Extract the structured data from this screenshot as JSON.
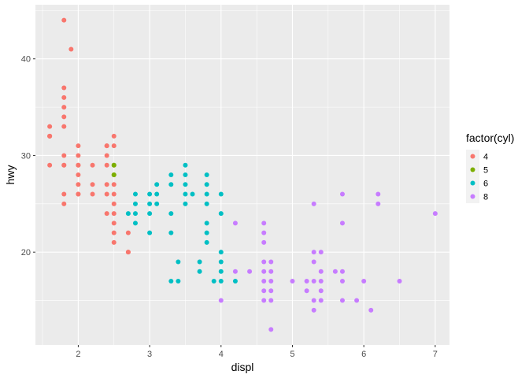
{
  "chart_data": {
    "type": "scatter",
    "title": "",
    "xlabel": "displ",
    "ylabel": "hwy",
    "xlim": [
      1.4,
      7.2
    ],
    "ylim": [
      10.4,
      45.6
    ],
    "x_ticks": [
      2,
      3,
      4,
      5,
      6,
      7
    ],
    "y_ticks": [
      20,
      30,
      40
    ],
    "grid": true,
    "legend": {
      "title": "factor(cyl)",
      "placement": "right",
      "entries": [
        {
          "label": "4",
          "color": "#F8766D"
        },
        {
          "label": "5",
          "color": "#7CAE00"
        },
        {
          "label": "6",
          "color": "#00BFC4"
        },
        {
          "label": "8",
          "color": "#C77CFF"
        }
      ]
    },
    "series": [
      {
        "name": "4",
        "color": "#F8766D",
        "points": [
          [
            1.6,
            33
          ],
          [
            1.6,
            32
          ],
          [
            1.6,
            32
          ],
          [
            1.6,
            29
          ],
          [
            1.6,
            32
          ],
          [
            1.8,
            44
          ],
          [
            1.9,
            41
          ],
          [
            1.8,
            37
          ],
          [
            1.8,
            36
          ],
          [
            1.8,
            35
          ],
          [
            1.8,
            34
          ],
          [
            1.8,
            33
          ],
          [
            1.8,
            30
          ],
          [
            1.8,
            29
          ],
          [
            1.8,
            29
          ],
          [
            1.8,
            26
          ],
          [
            1.8,
            25
          ],
          [
            2.0,
            31
          ],
          [
            2.0,
            30
          ],
          [
            2.0,
            29
          ],
          [
            2.0,
            28
          ],
          [
            2.0,
            27
          ],
          [
            2.0,
            26
          ],
          [
            2.0,
            26
          ],
          [
            2.0,
            29
          ],
          [
            2.2,
            29
          ],
          [
            2.2,
            27
          ],
          [
            2.2,
            26
          ],
          [
            2.4,
            31
          ],
          [
            2.4,
            31
          ],
          [
            2.4,
            30
          ],
          [
            2.4,
            29
          ],
          [
            2.4,
            27
          ],
          [
            2.4,
            26
          ],
          [
            2.4,
            24
          ],
          [
            2.5,
            32
          ],
          [
            2.5,
            31
          ],
          [
            2.5,
            27
          ],
          [
            2.5,
            26
          ],
          [
            2.5,
            25
          ],
          [
            2.5,
            24
          ],
          [
            2.5,
            23
          ],
          [
            2.5,
            22
          ],
          [
            2.5,
            21
          ],
          [
            2.7,
            22
          ],
          [
            2.7,
            20
          ],
          [
            2.7,
            20
          ]
        ]
      },
      {
        "name": "5",
        "color": "#7CAE00",
        "points": [
          [
            2.5,
            29
          ],
          [
            2.5,
            29
          ],
          [
            2.5,
            28
          ],
          [
            2.5,
            28
          ]
        ]
      },
      {
        "name": "6",
        "color": "#00BFC4",
        "points": [
          [
            2.7,
            24
          ],
          [
            2.8,
            26
          ],
          [
            2.8,
            25
          ],
          [
            2.8,
            24
          ],
          [
            2.8,
            23
          ],
          [
            3.0,
            26
          ],
          [
            3.0,
            25
          ],
          [
            3.0,
            24
          ],
          [
            3.0,
            22
          ],
          [
            3.1,
            27
          ],
          [
            3.1,
            26
          ],
          [
            3.1,
            25
          ],
          [
            3.3,
            28
          ],
          [
            3.3,
            27
          ],
          [
            3.3,
            24
          ],
          [
            3.3,
            22
          ],
          [
            3.3,
            17
          ],
          [
            3.4,
            19
          ],
          [
            3.4,
            17
          ],
          [
            3.5,
            29
          ],
          [
            3.5,
            28
          ],
          [
            3.5,
            27
          ],
          [
            3.5,
            26
          ],
          [
            3.5,
            25
          ],
          [
            3.6,
            26
          ],
          [
            3.7,
            19
          ],
          [
            3.7,
            18
          ],
          [
            3.8,
            28
          ],
          [
            3.8,
            27
          ],
          [
            3.8,
            26
          ],
          [
            3.8,
            25
          ],
          [
            3.8,
            23
          ],
          [
            3.8,
            22
          ],
          [
            3.8,
            21
          ],
          [
            3.9,
            17
          ],
          [
            4.0,
            26
          ],
          [
            4.0,
            24
          ],
          [
            4.0,
            20
          ],
          [
            4.0,
            19
          ],
          [
            4.0,
            18
          ],
          [
            4.0,
            17
          ],
          [
            4.2,
            17
          ]
        ]
      },
      {
        "name": "8",
        "color": "#C77CFF",
        "points": [
          [
            4.0,
            15
          ],
          [
            4.2,
            23
          ],
          [
            4.2,
            18
          ],
          [
            4.4,
            18
          ],
          [
            4.6,
            23
          ],
          [
            4.6,
            22
          ],
          [
            4.6,
            21
          ],
          [
            4.6,
            19
          ],
          [
            4.6,
            18
          ],
          [
            4.6,
            17
          ],
          [
            4.6,
            16
          ],
          [
            4.6,
            15
          ],
          [
            4.7,
            19
          ],
          [
            4.7,
            18
          ],
          [
            4.7,
            17
          ],
          [
            4.7,
            16
          ],
          [
            4.7,
            15
          ],
          [
            4.7,
            12
          ],
          [
            5.0,
            17
          ],
          [
            5.2,
            17
          ],
          [
            5.2,
            16
          ],
          [
            5.3,
            25
          ],
          [
            5.3,
            20
          ],
          [
            5.3,
            19
          ],
          [
            5.3,
            17
          ],
          [
            5.3,
            15
          ],
          [
            5.3,
            14
          ],
          [
            5.4,
            20
          ],
          [
            5.4,
            18
          ],
          [
            5.4,
            17
          ],
          [
            5.4,
            16
          ],
          [
            5.4,
            15
          ],
          [
            5.6,
            18
          ],
          [
            5.7,
            26
          ],
          [
            5.7,
            23
          ],
          [
            5.7,
            18
          ],
          [
            5.7,
            17
          ],
          [
            5.7,
            15
          ],
          [
            5.9,
            15
          ],
          [
            6.0,
            17
          ],
          [
            6.1,
            14
          ],
          [
            6.2,
            26
          ],
          [
            6.2,
            25
          ],
          [
            6.5,
            17
          ],
          [
            7.0,
            24
          ]
        ]
      }
    ]
  }
}
